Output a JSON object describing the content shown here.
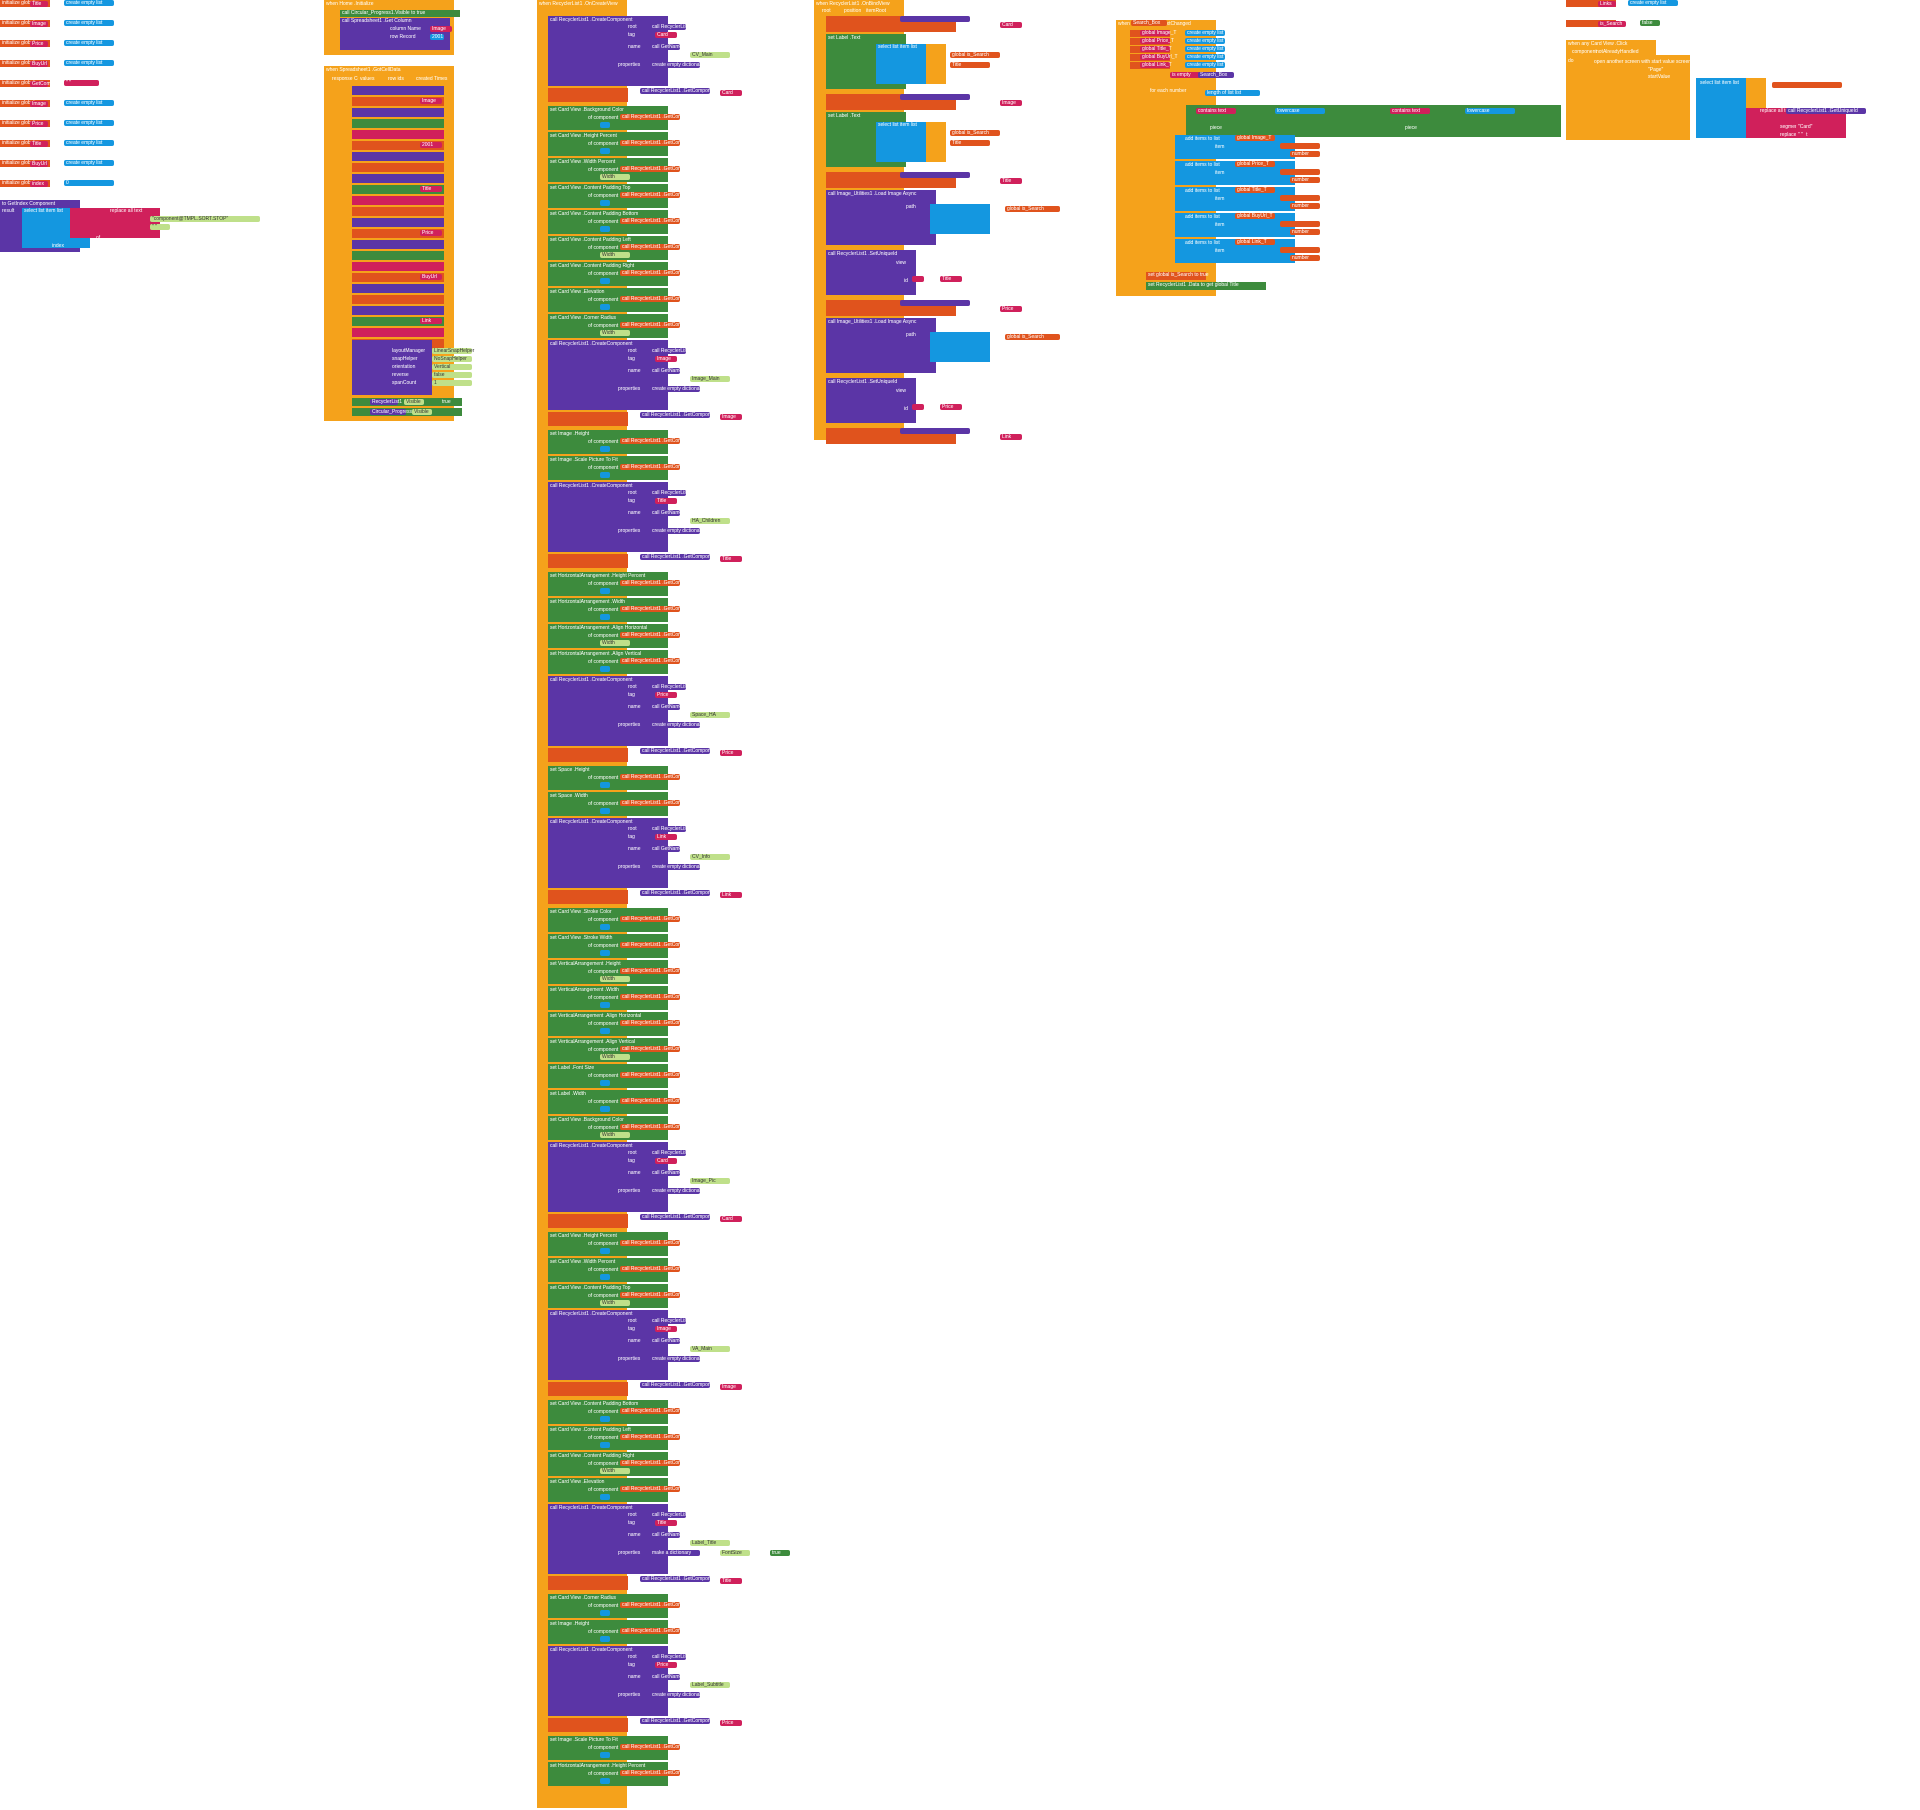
{
  "globals": [
    {
      "name": "Title",
      "init": "create empty list"
    },
    {
      "name": "Image",
      "init": "create empty list"
    },
    {
      "name": "Price",
      "init": "create empty list"
    },
    {
      "name": "BuyUrl",
      "init": "create empty list"
    },
    {
      "name": "GetComponent",
      "init": "\" \""
    },
    {
      "name": "Image",
      "init": "create empty list"
    },
    {
      "name": "Price",
      "init": "create empty list"
    },
    {
      "name": "Title",
      "init": "create empty list"
    },
    {
      "name": "BuyUrl",
      "init": "create empty list"
    },
    {
      "name": "index",
      "init": "0"
    }
  ],
  "ui_keywords": {
    "initialize_global": "initialize global",
    "to": "to",
    "create_empty_list": "create empty list",
    "when": "when",
    "do": "do",
    "call": "call",
    "set": "set",
    "get": "get",
    "result": "result",
    "then": "then",
    "else": "else",
    "if": "if",
    "for_each_number": "for each number",
    "from": "from",
    "by": "by",
    "index": "index",
    "list": "list",
    "text": "text",
    "in": "in"
  },
  "event_blocks": [
    {
      "id": "home_init",
      "event": "when Home .Initialize"
    },
    {
      "id": "spreadsheet_gotcell",
      "event": "when Spreadsheet1 .GotCellData"
    },
    {
      "id": "recycler_oncreate",
      "event": "when RecyclerList1 .OnCreateView"
    },
    {
      "id": "recycler_onbind",
      "event": "when RecyclerList1 .OnBindView"
    },
    {
      "id": "search_change",
      "event": "when Search_Box .TextChanged"
    },
    {
      "id": "list_onclick",
      "event": "when any Card View .Click"
    }
  ],
  "col1_procedure": {
    "name": "to GetIndex Component",
    "result": "result",
    "select": "select list item list",
    "replace": "replace all text",
    "segment_text": "\"component@TMPL.SORT.STOP\"",
    "replacement": "\" \"",
    "of": "of",
    "index": "index"
  },
  "col2": {
    "home_calls": [
      "call Circular_Progress1.Visible to true",
      "call Spreadsheet1 .Get Column"
    ],
    "column_name_label": "column Name",
    "row_record_label": "row Record",
    "values": [
      "Image",
      "2001",
      "Title",
      "Price",
      "BuyUrl",
      "Link"
    ],
    "response_fields": [
      "response Code",
      "values",
      "row ids",
      "created Times"
    ],
    "initialize_fields": [
      "layoutManager",
      "snapHelper",
      "orientation",
      "reverse",
      "spanCount"
    ],
    "initialize_values": [
      "LinearSnapHelper",
      "NoSnapHelper",
      "Vertical",
      "false",
      "1"
    ],
    "visible_labels": [
      "Circular_Progress1",
      "Visible",
      "RecyclerList1",
      "Visible",
      "true"
    ]
  },
  "col3_component_names": [
    "CV_Main",
    "Image_Main",
    "HA_Children",
    "Space_HA",
    "CV_Info",
    "Image_Pic",
    "VA_Main",
    "Label_Title",
    "Label_Subtitle"
  ],
  "col3_property_labels": [
    "set Card View .Background Color",
    "set Card View .Height Percent",
    "set Card View .Width Percent",
    "set Card View .Content Padding Top",
    "set Card View .Content Padding Bottom",
    "set Card View .Content Padding Left",
    "set Card View .Content Padding Right",
    "set Card View .Elevation",
    "set Card View .Corner Radius",
    "set Image .Height",
    "set Image .Scale Picture To Fit",
    "set HorizontalArrangement .Height Percent",
    "set HorizontalArrangement .Width",
    "set HorizontalArrangement .Align Horizontal",
    "set HorizontalArrangement .Align Vertical",
    "set Space .Height",
    "set Space .Width",
    "set Card View .Stroke Color",
    "set Card View .Stroke Width",
    "set VerticalArrangement .Height",
    "set VerticalArrangement .Width",
    "set VerticalArrangement .Align Horizontal",
    "set VerticalArrangement .Align Vertical",
    "set Label .Font Size",
    "set Label .Width"
  ],
  "col3_keywords": {
    "create_component": "call RecyclerList1 .CreateComponent",
    "get_component": "call RecyclerList1 .GetComponent",
    "root": "root",
    "tag": "tag",
    "name": "name",
    "properties": "properties",
    "empty_dictionary": "create empty dictionary",
    "make_dictionary": "make a dictionary",
    "key": "key",
    "value": "value",
    "get_name": "call GetName",
    "component": "Component",
    "of_component": "of component",
    "width_value": "Width",
    "home": "Home",
    "font_size_key": "FontSize",
    "font_size_value": "true"
  },
  "col4": {
    "header_fields": [
      "root",
      "position",
      "itemRoot"
    ],
    "set_label_text": "set Label .Text",
    "load_image": "call Image_Utilities1 .Load Image Async",
    "path": "path",
    "set_unique_id": "call RecyclerList1 .SetUniqueId",
    "view": "view",
    "id": "id",
    "join": "join",
    "select": "select list item list",
    "is_search": "global is_Search",
    "titles": [
      "Title",
      "Title",
      "Price",
      "Image",
      "Link"
    ],
    "tags": [
      "Card",
      "Image",
      "Title",
      "Price",
      "Link"
    ]
  },
  "col5": {
    "search_box": "Search_Box",
    "text_changed": "when Search_Box .Text Changed",
    "is_empty": "is empty",
    "length_of_list": "length of list list",
    "contains_text": "contains text",
    "piece": "piece",
    "lowercase": "lowercase",
    "add_items": "add items to list",
    "item": "item",
    "number": "number",
    "global_lists": [
      "global Image_T",
      "global Price_T",
      "global Title_T",
      "global BuyUrl_T",
      "global Link_T"
    ],
    "final_sets": [
      "set global is_Search to true",
      "set RecyclerList1 .Data to get global Title"
    ]
  },
  "col6": {
    "globals": [
      "Links",
      "is_Search"
    ],
    "is_search_init": "false",
    "click_event": "when any Card View .Click",
    "component": "component",
    "not_already_handled": "notAlreadyHandled",
    "do": "do",
    "open_another": "open another screen with start value screenName",
    "start_value": "startValue",
    "select": "select list item list",
    "replace_all": "replace all text",
    "get_unique_id": "call RecyclerList1 .GetUniqueId",
    "view": "view",
    "segment": "segment",
    "replacement": "replacement",
    "segment_text": "\"Card\"",
    "replacement_text": "\" \"",
    "screen_name": "\"Page\""
  },
  "colors": {
    "event_orange": "#f5a21b",
    "procedure_purple": "#5b35a6",
    "setter_green": "#3d8b3d",
    "variable_orange": "#e0531d",
    "list_blue": "#1497e0",
    "text_magenta": "#d0205b"
  }
}
